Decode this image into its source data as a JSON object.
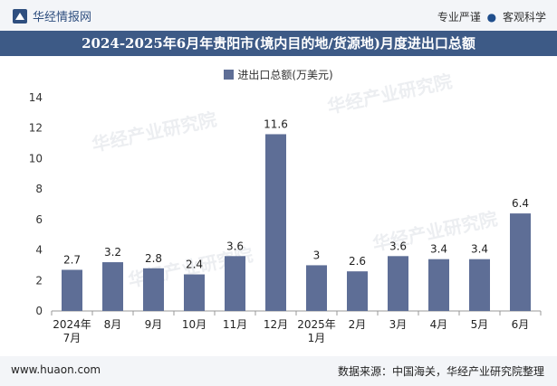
{
  "header": {
    "brand": "华经情报网",
    "slogan_left": "专业严谨",
    "slogan_right": "客观科学"
  },
  "title": "2024-2025年6月年贵阳市(境内目的地/货源地)月度进出口总额",
  "watermark": "华经产业研究院",
  "footer": {
    "site": "www.huaon.com",
    "source": "数据来源：中国海关，华经产业研究院整理"
  },
  "colors": {
    "bar": "#5e6e96",
    "title_bg": "#3d5a86"
  },
  "chart_data": {
    "type": "bar",
    "legend": "进出口总额(万美元)",
    "categories": [
      [
        "2024年",
        "7月"
      ],
      [
        "8月"
      ],
      [
        "9月"
      ],
      [
        "10月"
      ],
      [
        "11月"
      ],
      [
        "12月"
      ],
      [
        "2025年",
        "1月"
      ],
      [
        "2月"
      ],
      [
        "3月"
      ],
      [
        "4月"
      ],
      [
        "5月"
      ],
      [
        "6月"
      ]
    ],
    "values": [
      2.7,
      3.2,
      2.8,
      2.4,
      3.6,
      11.6,
      3,
      2.6,
      3.6,
      3.4,
      3.4,
      6.4
    ],
    "labels": [
      "2.7",
      "3.2",
      "2.8",
      "2.4",
      "3.6",
      "11.6",
      "3",
      "2.6",
      "3.6",
      "3.4",
      "3.4",
      "6.4"
    ],
    "ylim": [
      0,
      14
    ],
    "yticks": [
      0,
      2,
      4,
      6,
      8,
      10,
      12,
      14
    ]
  }
}
